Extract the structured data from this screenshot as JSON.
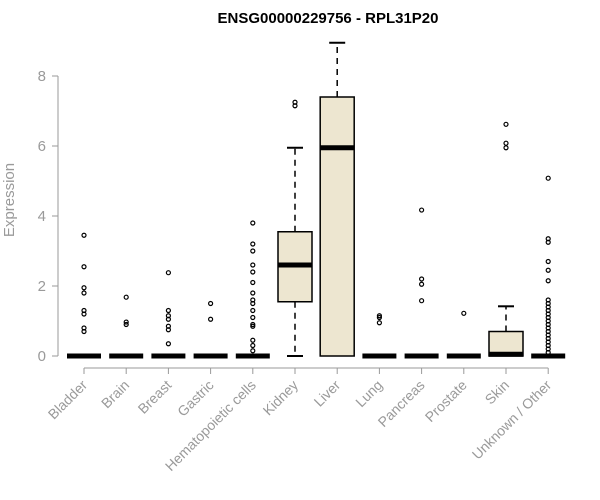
{
  "chart_data": {
    "type": "boxplot",
    "title": "ENSG00000229756 - RPL31P20",
    "xlabel": "",
    "ylabel": "Expression",
    "ylim": [
      0,
      9
    ],
    "yticks": [
      0,
      2,
      4,
      6,
      8
    ],
    "grid": false,
    "box_fill": "#ede6d0",
    "categories": [
      "Bladder",
      "Brain",
      "Breast",
      "Gastric",
      "Hematopoietic cells",
      "Kidney",
      "Liver",
      "Lung",
      "Pancreas",
      "Prostate",
      "Skin",
      "Unknown / Other"
    ],
    "boxes": [
      {
        "category": "Bladder",
        "whisker_low": 0,
        "q1": 0,
        "median": 0,
        "q3": 0,
        "whisker_high": 0,
        "outliers": [
          3.45,
          2.55,
          1.95,
          1.8,
          1.3,
          1.2,
          0.8,
          0.7
        ]
      },
      {
        "category": "Brain",
        "whisker_low": 0,
        "q1": 0,
        "median": 0,
        "q3": 0,
        "whisker_high": 0,
        "outliers": [
          1.68,
          0.97,
          0.9
        ]
      },
      {
        "category": "Breast",
        "whisker_low": 0,
        "q1": 0,
        "median": 0,
        "q3": 0,
        "whisker_high": 0,
        "outliers": [
          2.38,
          1.3,
          1.15,
          1.05,
          0.85,
          0.75,
          0.35
        ]
      },
      {
        "category": "Gastric",
        "whisker_low": 0,
        "q1": 0,
        "median": 0,
        "q3": 0,
        "whisker_high": 0,
        "outliers": [
          1.5,
          1.05
        ]
      },
      {
        "category": "Hematopoietic cells",
        "whisker_low": 0,
        "q1": 0,
        "median": 0,
        "q3": 0,
        "whisker_high": 0,
        "outliers": [
          3.8,
          3.2,
          3.0,
          2.6,
          2.4,
          2.1,
          1.8,
          1.6,
          1.5,
          1.3,
          1.1,
          0.9,
          0.85,
          0.45,
          0.3,
          0.15
        ]
      },
      {
        "category": "Kidney",
        "whisker_low": 0,
        "q1": 1.55,
        "median": 2.6,
        "q3": 3.55,
        "whisker_high": 5.95,
        "outliers": [
          7.25,
          7.15
        ]
      },
      {
        "category": "Liver",
        "whisker_low": 0,
        "q1": 0,
        "median": 5.95,
        "q3": 7.4,
        "whisker_high": 8.95,
        "outliers": []
      },
      {
        "category": "Lung",
        "whisker_low": 0,
        "q1": 0,
        "median": 0,
        "q3": 0,
        "whisker_high": 0,
        "outliers": [
          1.15,
          1.1,
          0.95
        ]
      },
      {
        "category": "Pancreas",
        "whisker_low": 0,
        "q1": 0,
        "median": 0,
        "q3": 0,
        "whisker_high": 0,
        "outliers": [
          4.17,
          2.2,
          2.05,
          1.58
        ]
      },
      {
        "category": "Prostate",
        "whisker_low": 0,
        "q1": 0,
        "median": 0,
        "q3": 0,
        "whisker_high": 0,
        "outliers": [
          1.22
        ]
      },
      {
        "category": "Skin",
        "whisker_low": 0,
        "q1": 0,
        "median": 0.05,
        "q3": 0.7,
        "whisker_high": 1.42,
        "outliers": [
          6.62,
          6.08,
          5.95
        ]
      },
      {
        "category": "Unknown / Other",
        "whisker_low": 0,
        "q1": 0,
        "median": 0,
        "q3": 0,
        "whisker_high": 0,
        "outliers": [
          5.08,
          3.35,
          3.25,
          2.7,
          2.45,
          2.15,
          1.6,
          1.5,
          1.4,
          1.3,
          1.2,
          1.1,
          1.0,
          0.9,
          0.8,
          0.7,
          0.6,
          0.5,
          0.4,
          0.3,
          0.2,
          0.1
        ]
      }
    ]
  }
}
